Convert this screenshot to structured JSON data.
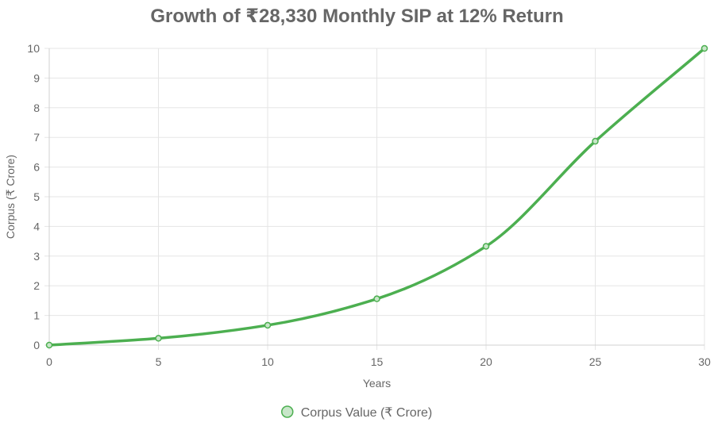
{
  "chart_data": {
    "type": "line",
    "title": "Growth of ₹28,330 Monthly SIP at 12% Return",
    "xlabel": "Years",
    "ylabel": "Corpus (₹ Crore)",
    "x": [
      0,
      5,
      10,
      15,
      20,
      25,
      30
    ],
    "xlim": [
      0,
      30
    ],
    "ylim": [
      0,
      10
    ],
    "xticks": [
      0,
      5,
      10,
      15,
      20,
      25,
      30
    ],
    "yticks": [
      0,
      1,
      2,
      3,
      4,
      5,
      6,
      7,
      8,
      9,
      10
    ],
    "grid": true,
    "legend_position": "bottom",
    "series": [
      {
        "name": "Corpus Value (₹ Crore)",
        "values": [
          0,
          0.23,
          0.67,
          1.56,
          3.33,
          6.87,
          10.0
        ],
        "color": "#4caf50",
        "fill": "#c8e6c9"
      }
    ]
  }
}
